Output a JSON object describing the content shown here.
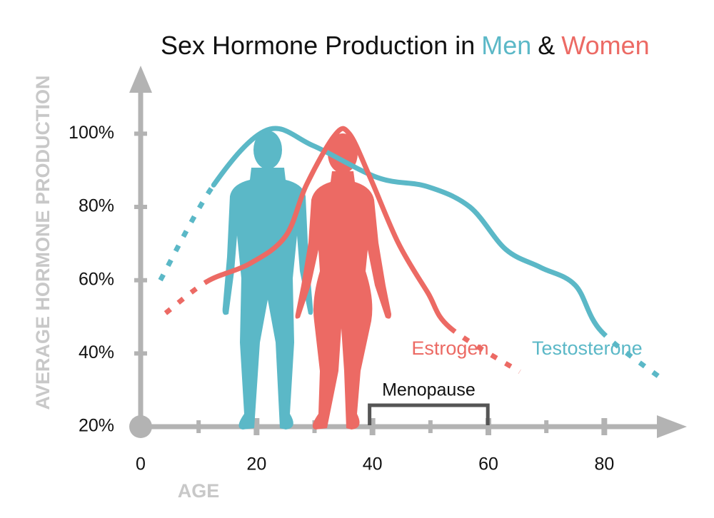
{
  "chart_data": {
    "type": "line",
    "title_parts": [
      "Sex Hormone Production in",
      "Men",
      "&",
      "Women"
    ],
    "title_colors": [
      "#111111",
      "#5bb8c7",
      "#111111",
      "#ec6a64"
    ],
    "y_label": "AVERAGE HORMONE PRODUCTION",
    "x_label": "AGE",
    "xlim": [
      0,
      94
    ],
    "xticks": [
      0,
      20,
      40,
      60,
      80
    ],
    "x_minor_ticks": [
      10,
      30,
      50,
      70
    ],
    "ylim": [
      20,
      118
    ],
    "yticks": [
      {
        "value": 20,
        "label": "20%"
      },
      {
        "value": 40,
        "label": "40%"
      },
      {
        "value": 60,
        "label": "60%"
      },
      {
        "value": 80,
        "label": "80%"
      },
      {
        "value": 100,
        "label": "100%"
      }
    ],
    "dotted_ends": true,
    "series": [
      {
        "name": "Testosterone",
        "color": "#5bb8c7",
        "x": [
          3.4,
          12.6,
          21.8,
          29.8,
          40.9,
          49.4,
          56.8,
          63,
          69,
          75,
          79.5,
          90
        ],
        "values": [
          60,
          86,
          101,
          96.7,
          88,
          85.6,
          80,
          68.4,
          63.5,
          58.6,
          46,
          33
        ]
      },
      {
        "name": "Estrogen",
        "color": "#ec6a64",
        "x": [
          4.3,
          11.4,
          18.8,
          25,
          28.6,
          33.5,
          36,
          39.6,
          44.5,
          49.5,
          53.4,
          65.4
        ],
        "values": [
          51,
          59.6,
          64.5,
          72,
          86,
          99.6,
          100,
          88,
          70,
          56.7,
          47,
          35
        ]
      }
    ],
    "menopause": {
      "label": "Menopause",
      "range": [
        39.5,
        59.9
      ]
    }
  }
}
